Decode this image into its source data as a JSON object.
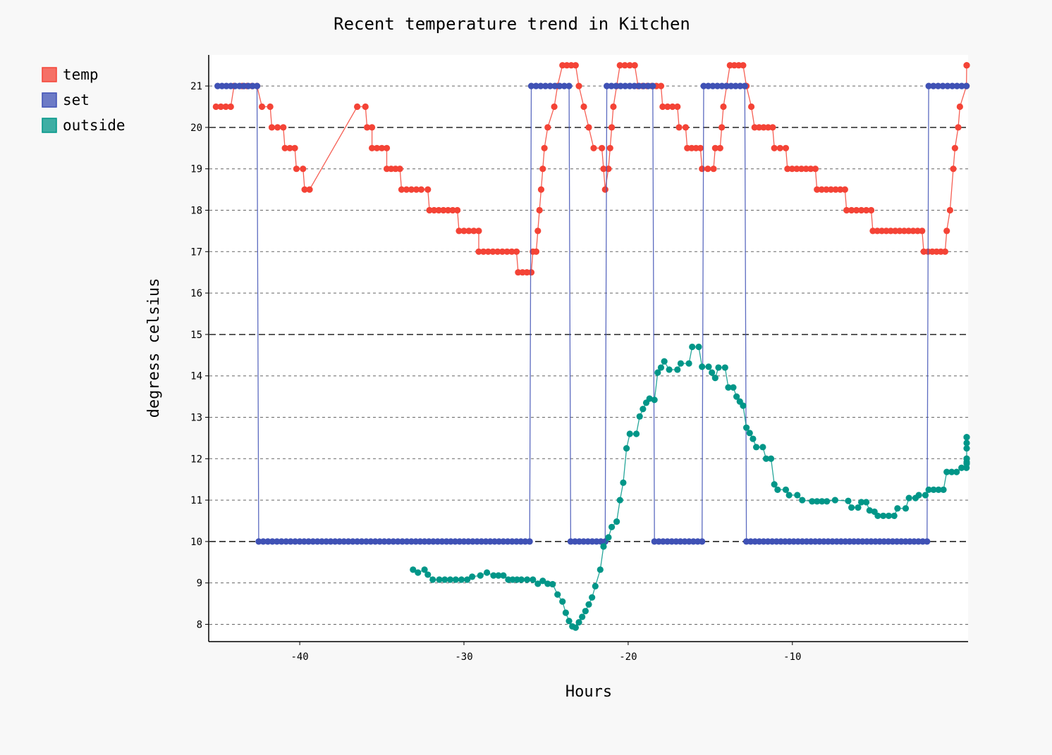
{
  "chart_data": {
    "type": "line",
    "title": "Recent temperature trend in Kitchen",
    "xlabel": "Hours",
    "ylabel": "degress celsius",
    "xlim": [
      -45.5,
      0.7
    ],
    "ylim": [
      7.6,
      21.75
    ],
    "xticks": [
      -40,
      -30,
      -20,
      -10
    ],
    "yticks": [
      8,
      9,
      10,
      11,
      12,
      13,
      14,
      15,
      16,
      17,
      18,
      19,
      20,
      21
    ],
    "major_gridlines": [
      10,
      15,
      20
    ],
    "grid": true,
    "legend": "top-left",
    "series": [
      {
        "name": "temp",
        "color": "#f44336",
        "points": [
          [
            -45.1,
            20.5
          ],
          [
            -44.2,
            20.5
          ],
          [
            -44.0,
            21.0
          ],
          [
            -43.5,
            21.0
          ],
          [
            -42.6,
            21.0
          ],
          [
            -42.3,
            20.5
          ],
          [
            -41.8,
            20.5
          ],
          [
            -41.7,
            20.0
          ],
          [
            -41.0,
            20.0
          ],
          [
            -40.9,
            19.5
          ],
          [
            -40.3,
            19.5
          ],
          [
            -40.2,
            19.0
          ],
          [
            -39.8,
            19.0
          ],
          [
            -39.7,
            18.5
          ],
          [
            -39.4,
            18.5
          ],
          [
            -36.5,
            20.5
          ],
          [
            -36.0,
            20.5
          ],
          [
            -35.9,
            20.0
          ],
          [
            -35.6,
            20.0
          ],
          [
            -35.6,
            19.5
          ],
          [
            -34.7,
            19.5
          ],
          [
            -34.7,
            19.0
          ],
          [
            -33.9,
            19.0
          ],
          [
            -33.8,
            18.5
          ],
          [
            -32.9,
            18.5
          ],
          [
            -32.6,
            18.5
          ],
          [
            -32.2,
            18.5
          ],
          [
            -32.1,
            18.0
          ],
          [
            -30.4,
            18.0
          ],
          [
            -30.3,
            17.5
          ],
          [
            -29.1,
            17.5
          ],
          [
            -29.1,
            17.0
          ],
          [
            -26.8,
            17.0
          ],
          [
            -26.7,
            16.5
          ],
          [
            -25.9,
            16.5
          ],
          [
            -25.8,
            17.0
          ],
          [
            -25.6,
            17.0
          ],
          [
            -25.5,
            17.5
          ],
          [
            -25.4,
            18.0
          ],
          [
            -25.3,
            18.5
          ],
          [
            -25.2,
            19.0
          ],
          [
            -25.1,
            19.5
          ],
          [
            -24.9,
            20.0
          ],
          [
            -24.5,
            20.5
          ],
          [
            -24.3,
            21.0
          ],
          [
            -24.0,
            21.5
          ],
          [
            -23.2,
            21.5
          ],
          [
            -23.0,
            21.0
          ],
          [
            -22.7,
            20.5
          ],
          [
            -22.4,
            20.0
          ],
          [
            -22.1,
            19.5
          ],
          [
            -21.6,
            19.5
          ],
          [
            -21.5,
            19.0
          ],
          [
            -21.4,
            18.5
          ],
          [
            -21.2,
            19.0
          ],
          [
            -21.1,
            19.5
          ],
          [
            -21.0,
            20.0
          ],
          [
            -20.9,
            20.5
          ],
          [
            -20.7,
            21.0
          ],
          [
            -20.5,
            21.5
          ],
          [
            -19.6,
            21.5
          ],
          [
            -19.4,
            21.0
          ],
          [
            -18.0,
            21.0
          ],
          [
            -17.9,
            20.5
          ],
          [
            -17.0,
            20.5
          ],
          [
            -16.9,
            20.0
          ],
          [
            -16.5,
            20.0
          ],
          [
            -16.4,
            19.5
          ],
          [
            -15.6,
            19.5
          ],
          [
            -15.5,
            19.0
          ],
          [
            -14.8,
            19.0
          ],
          [
            -14.7,
            19.5
          ],
          [
            -14.4,
            19.5
          ],
          [
            -14.3,
            20.0
          ],
          [
            -14.2,
            20.5
          ],
          [
            -14.0,
            21.0
          ],
          [
            -13.8,
            21.5
          ],
          [
            -13.0,
            21.5
          ],
          [
            -12.8,
            21.0
          ],
          [
            -12.5,
            20.5
          ],
          [
            -12.3,
            20.0
          ],
          [
            -11.2,
            20.0
          ],
          [
            -11.1,
            19.5
          ],
          [
            -10.4,
            19.5
          ],
          [
            -10.3,
            19.0
          ],
          [
            -8.6,
            19.0
          ],
          [
            -8.5,
            18.5
          ],
          [
            -6.8,
            18.5
          ],
          [
            -6.7,
            18.0
          ],
          [
            -5.2,
            18.0
          ],
          [
            -5.1,
            17.5
          ],
          [
            -2.1,
            17.5
          ],
          [
            -2.0,
            17.0
          ],
          [
            -0.7,
            17.0
          ],
          [
            -0.6,
            17.5
          ],
          [
            -0.4,
            18.0
          ],
          [
            -0.2,
            19.0
          ],
          [
            -0.1,
            19.5
          ],
          [
            0.1,
            20.0
          ],
          [
            0.2,
            20.5
          ],
          [
            0.6,
            21.0
          ],
          [
            0.8,
            21.5
          ],
          [
            1.3,
            21.5
          ]
        ]
      },
      {
        "name": "set",
        "color": "#3f51b5",
        "points": [
          [
            -45.0,
            21.0
          ],
          [
            -42.6,
            21.0
          ],
          [
            -42.5,
            10.0
          ],
          [
            -40.0,
            10.0
          ],
          [
            -36.5,
            10.0
          ],
          [
            -33.2,
            10.0
          ],
          [
            -26.0,
            10.0
          ],
          [
            -25.9,
            21.0
          ],
          [
            -23.6,
            21.0
          ],
          [
            -23.5,
            10.0
          ],
          [
            -21.4,
            10.0
          ],
          [
            -21.3,
            21.0
          ],
          [
            -18.5,
            21.0
          ],
          [
            -18.4,
            10.0
          ],
          [
            -15.5,
            10.0
          ],
          [
            -15.4,
            21.0
          ],
          [
            -12.9,
            21.0
          ],
          [
            -12.8,
            10.0
          ],
          [
            -1.8,
            10.0
          ],
          [
            -1.7,
            21.0
          ],
          [
            0.6,
            21.0
          ]
        ]
      },
      {
        "name": "outside",
        "color": "#009688",
        "points": [
          [
            -33.1,
            9.32
          ],
          [
            -32.8,
            9.25
          ],
          [
            -32.4,
            9.32
          ],
          [
            -32.2,
            9.2
          ],
          [
            -31.9,
            9.08
          ],
          [
            -31.5,
            9.08
          ],
          [
            -30.5,
            9.08
          ],
          [
            -29.8,
            9.08
          ],
          [
            -29.5,
            9.15
          ],
          [
            -29.0,
            9.18
          ],
          [
            -28.6,
            9.25
          ],
          [
            -28.2,
            9.18
          ],
          [
            -27.6,
            9.18
          ],
          [
            -27.3,
            9.08
          ],
          [
            -26.5,
            9.08
          ],
          [
            -25.8,
            9.08
          ],
          [
            -25.5,
            8.98
          ],
          [
            -25.2,
            9.05
          ],
          [
            -24.9,
            8.98
          ],
          [
            -24.6,
            8.97
          ],
          [
            -24.3,
            8.72
          ],
          [
            -24.0,
            8.55
          ],
          [
            -23.8,
            8.28
          ],
          [
            -23.6,
            8.08
          ],
          [
            -23.4,
            7.95
          ],
          [
            -23.2,
            7.92
          ],
          [
            -23.0,
            8.05
          ],
          [
            -22.8,
            8.18
          ],
          [
            -22.6,
            8.32
          ],
          [
            -22.4,
            8.48
          ],
          [
            -22.2,
            8.65
          ],
          [
            -22.0,
            8.92
          ],
          [
            -21.7,
            9.32
          ],
          [
            -21.5,
            9.88
          ],
          [
            -21.2,
            10.1
          ],
          [
            -21.0,
            10.35
          ],
          [
            -20.7,
            10.48
          ],
          [
            -20.5,
            11.0
          ],
          [
            -20.3,
            11.42
          ],
          [
            -20.1,
            12.25
          ],
          [
            -19.9,
            12.6
          ],
          [
            -19.5,
            12.6
          ],
          [
            -19.3,
            13.02
          ],
          [
            -19.1,
            13.2
          ],
          [
            -18.9,
            13.35
          ],
          [
            -18.7,
            13.45
          ],
          [
            -18.4,
            13.42
          ],
          [
            -18.2,
            14.08
          ],
          [
            -18.0,
            14.2
          ],
          [
            -17.8,
            14.35
          ],
          [
            -17.5,
            14.15
          ],
          [
            -17.0,
            14.15
          ],
          [
            -16.8,
            14.3
          ],
          [
            -16.3,
            14.3
          ],
          [
            -16.1,
            14.7
          ],
          [
            -15.7,
            14.7
          ],
          [
            -15.5,
            14.22
          ],
          [
            -15.1,
            14.22
          ],
          [
            -14.9,
            14.08
          ],
          [
            -14.7,
            13.95
          ],
          [
            -14.5,
            14.2
          ],
          [
            -14.1,
            14.2
          ],
          [
            -13.9,
            13.72
          ],
          [
            -13.6,
            13.72
          ],
          [
            -13.4,
            13.5
          ],
          [
            -13.2,
            13.38
          ],
          [
            -13.0,
            13.28
          ],
          [
            -12.8,
            12.75
          ],
          [
            -12.6,
            12.62
          ],
          [
            -12.4,
            12.48
          ],
          [
            -12.2,
            12.28
          ],
          [
            -11.8,
            12.28
          ],
          [
            -11.6,
            12.0
          ],
          [
            -11.3,
            12.0
          ],
          [
            -11.1,
            11.38
          ],
          [
            -10.9,
            11.25
          ],
          [
            -10.4,
            11.25
          ],
          [
            -10.2,
            11.12
          ],
          [
            -9.7,
            11.12
          ],
          [
            -9.4,
            11.0
          ],
          [
            -8.8,
            10.97
          ],
          [
            -7.9,
            10.97
          ],
          [
            -7.4,
            11.0
          ],
          [
            -6.6,
            10.98
          ],
          [
            -6.4,
            10.82
          ],
          [
            -6.0,
            10.82
          ],
          [
            -5.8,
            10.95
          ],
          [
            -5.5,
            10.95
          ],
          [
            -5.3,
            10.75
          ],
          [
            -5.0,
            10.72
          ],
          [
            -4.8,
            10.62
          ],
          [
            -3.8,
            10.62
          ],
          [
            -3.6,
            10.8
          ],
          [
            -3.1,
            10.8
          ],
          [
            -2.9,
            11.05
          ],
          [
            -2.5,
            11.05
          ],
          [
            -2.3,
            11.12
          ],
          [
            -1.9,
            11.12
          ],
          [
            -1.7,
            11.25
          ],
          [
            -0.8,
            11.25
          ],
          [
            -0.6,
            11.68
          ],
          [
            0.0,
            11.68
          ],
          [
            0.3,
            11.78
          ],
          [
            0.6,
            11.78
          ],
          [
            0.9,
            11.88
          ],
          [
            1.6,
            11.92
          ],
          [
            1.9,
            12.0
          ],
          [
            2.7,
            12.0
          ],
          [
            2.9,
            12.25
          ],
          [
            3.1,
            12.38
          ],
          [
            3.4,
            12.52
          ],
          [
            3.6,
            12.52
          ]
        ]
      }
    ]
  }
}
